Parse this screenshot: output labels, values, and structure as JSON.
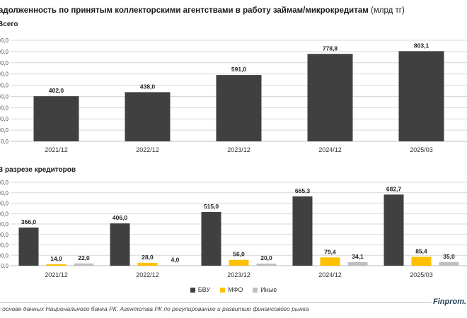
{
  "header": {
    "title": "адолженность по принятым коллекторскими агентствами в работу займам/микрокредитам",
    "unit": "(млрд тг)"
  },
  "colors": {
    "bvu": "#404040",
    "mfo": "#FFC000",
    "other": "#BFBFBF",
    "grid": "#D9D9D9"
  },
  "footer": {
    "source": "а основе данных Национального банка РК, Агентства РК по регулированию и развитию финансового рынка",
    "brand": "Finprom."
  },
  "chart_data": [
    {
      "type": "bar",
      "section_label": "Всего",
      "categories": [
        "2021/12",
        "2022/12",
        "2023/12",
        "2024/12",
        "2025/03"
      ],
      "series": [
        {
          "values": [
            402.0,
            438.0,
            591.0,
            778.8,
            803.1
          ]
        }
      ],
      "value_labels": [
        "402,0",
        "438,0",
        "591,0",
        "778,8",
        "803,1"
      ],
      "ylim": [
        0,
        900
      ],
      "yticks": [
        0,
        100,
        200,
        300,
        400,
        500,
        600,
        700,
        800,
        900
      ],
      "ytick_labels": [
        "0,0",
        "00,0",
        "00,0",
        "00,0",
        "00,0",
        "00,0",
        "00,0",
        "00,0",
        "00,0",
        "00,0"
      ],
      "grid": true
    },
    {
      "type": "bar",
      "section_label": "В разрезе кредиторов",
      "categories": [
        "2021/12",
        "2022/12",
        "2023/12",
        "2024/12",
        "2025/03"
      ],
      "series": [
        {
          "name": "БВУ",
          "values": [
            366.0,
            406.0,
            515.0,
            665.3,
            682.7
          ],
          "labels": [
            "366,0",
            "406,0",
            "515,0",
            "665,3",
            "682,7"
          ]
        },
        {
          "name": "МФО",
          "values": [
            14.0,
            28.0,
            56.0,
            79.4,
            85.4
          ],
          "labels": [
            "14,0",
            "28,0",
            "56,0",
            "79,4",
            "85,4"
          ]
        },
        {
          "name": "Иные",
          "values": [
            22.0,
            4.0,
            20.0,
            34.1,
            35.0
          ],
          "labels": [
            "22,0",
            "4,0",
            "20,0",
            "34,1",
            "35,0"
          ]
        }
      ],
      "ylim": [
        0,
        800
      ],
      "yticks": [
        0,
        100,
        200,
        300,
        400,
        500,
        600,
        700,
        800
      ],
      "ytick_labels": [
        "0,0",
        "00,0",
        "00,0",
        "00,0",
        "00,0",
        "00,0",
        "00,0",
        "00,0",
        "00,0"
      ],
      "legend": "bottom",
      "grid": true
    }
  ]
}
